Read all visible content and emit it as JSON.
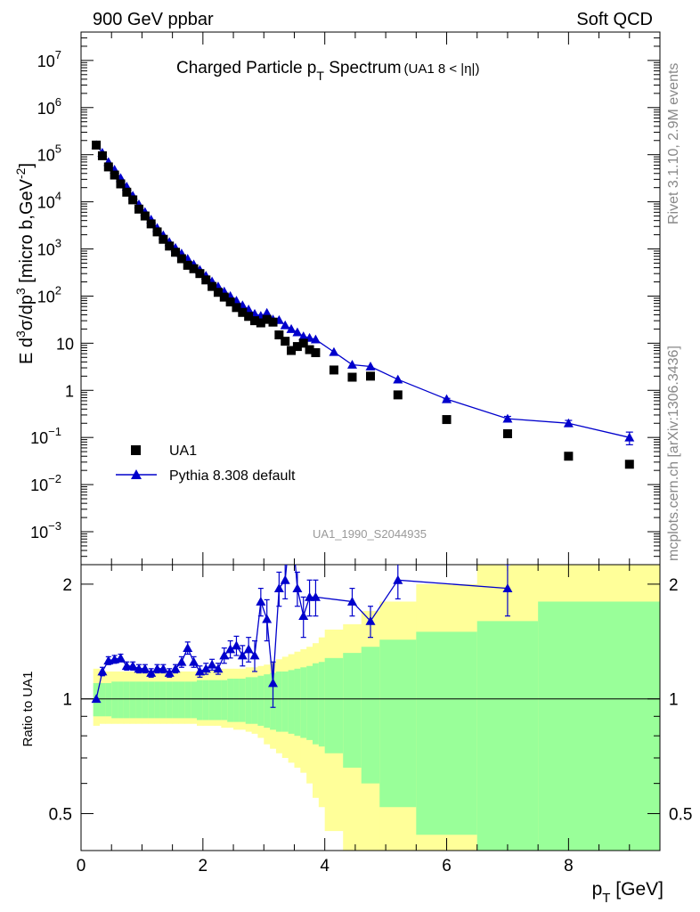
{
  "header": {
    "left": "900 GeV ppbar",
    "right": "Soft QCD",
    "side_top": "Rivet 3.1.10,  2.9M events",
    "side_bottom": "mcplots.cern.ch [arXiv:1306.3436]"
  },
  "colors": {
    "data": "#000000",
    "mc": "#0000cc",
    "band_inner": "#99ff99",
    "band_outer": "#ffff99"
  },
  "chart_data": [
    {
      "type": "scatter",
      "panel": "main",
      "title_main": "Charged Particle p",
      "title_sub": "T",
      "title_rest": " Spectrum",
      "title_extra": "(UA1   8 < |η|)",
      "ylabel": "E d³σ/dp³ [micro b,GeV⁻²]",
      "ylabel_parts": [
        "E d",
        "3",
        "σ/dp",
        "3",
        " [micro b,GeV",
        "-2",
        "]"
      ],
      "analysis_id": "UA1_1990_S2044935",
      "yscale": "log",
      "xlim": [
        0,
        9.5
      ],
      "ylim": [
        0.0002,
        40000000
      ],
      "yticks": [
        {
          "value": 10000000,
          "base": "10",
          "exp": "7"
        },
        {
          "value": 1000000,
          "base": "10",
          "exp": "6"
        },
        {
          "value": 100000,
          "base": "10",
          "exp": "5"
        },
        {
          "value": 10000,
          "base": "10",
          "exp": "4"
        },
        {
          "value": 1000,
          "base": "10",
          "exp": "3"
        },
        {
          "value": 100,
          "base": "10",
          "exp": "2"
        },
        {
          "value": 10,
          "base": "10",
          "exp": ""
        },
        {
          "value": 1,
          "base": "1",
          "exp": ""
        },
        {
          "value": 0.1,
          "base": "10",
          "exp": "−1"
        },
        {
          "value": 0.01,
          "base": "10",
          "exp": "−2"
        },
        {
          "value": 0.001,
          "base": "10",
          "exp": "−3"
        }
      ],
      "legend": [
        {
          "name": "UA1",
          "marker": "square"
        },
        {
          "name": "Pythia 8.308 default",
          "marker": "triangle-line"
        }
      ],
      "legend_position": "bottom-left",
      "series": [
        {
          "name": "UA1",
          "x": [
            0.25,
            0.35,
            0.45,
            0.55,
            0.65,
            0.75,
            0.85,
            0.95,
            1.05,
            1.15,
            1.25,
            1.35,
            1.45,
            1.55,
            1.65,
            1.75,
            1.85,
            1.95,
            2.05,
            2.15,
            2.25,
            2.35,
            2.45,
            2.55,
            2.65,
            2.75,
            2.85,
            2.95,
            3.05,
            3.15,
            3.25,
            3.35,
            3.45,
            3.55,
            3.65,
            3.75,
            3.85,
            4.15,
            4.45,
            4.75,
            5.2,
            6.0,
            7.0,
            8.0,
            9.0
          ],
          "y": [
            160000,
            95000,
            55000,
            37000,
            24000,
            16000,
            11000,
            7000,
            5000,
            3400,
            2300,
            1600,
            1150,
            850,
            620,
            450,
            380,
            300,
            220,
            160,
            120,
            95,
            75,
            57,
            45,
            37,
            30,
            27,
            32,
            28,
            15,
            11,
            7,
            8.5,
            10,
            7.3,
            6.3,
            2.7,
            1.9,
            2.0,
            0.8,
            0.24,
            0.12,
            0.04,
            0.027
          ]
        },
        {
          "name": "Pythia 8.308 default",
          "x": [
            0.25,
            0.35,
            0.45,
            0.55,
            0.65,
            0.75,
            0.85,
            0.95,
            1.05,
            1.15,
            1.25,
            1.35,
            1.45,
            1.55,
            1.65,
            1.75,
            1.85,
            1.95,
            2.05,
            2.15,
            2.25,
            2.35,
            2.45,
            2.55,
            2.65,
            2.75,
            2.85,
            2.95,
            3.05,
            3.15,
            3.25,
            3.35,
            3.45,
            3.55,
            3.65,
            3.75,
            3.85,
            4.15,
            4.45,
            4.75,
            5.2,
            6.0,
            7.0,
            8.0,
            9.0
          ],
          "y": [
            160000,
            110000,
            70000,
            48000,
            32000,
            21000,
            13500,
            8800,
            6100,
            4200,
            2800,
            1950,
            1400,
            1050,
            800,
            620,
            470,
            360,
            270,
            205,
            160,
            125,
            100,
            80,
            64,
            52,
            42,
            38,
            44,
            32,
            31,
            24,
            20,
            17,
            14,
            13,
            12,
            6.5,
            3.5,
            3.2,
            1.7,
            0.65,
            0.25,
            0.2,
            0.1
          ],
          "yerr_rel": [
            0,
            0,
            0,
            0,
            0,
            0,
            0,
            0,
            0,
            0,
            0,
            0,
            0,
            0,
            0,
            0,
            0,
            0,
            0,
            0,
            0,
            0,
            0,
            0,
            0,
            0,
            0,
            0,
            0,
            0,
            0,
            0,
            0,
            0,
            0,
            0,
            0,
            0,
            0,
            0,
            0,
            0.04,
            0.12,
            0.15,
            0.3
          ]
        }
      ]
    },
    {
      "type": "line",
      "panel": "ratio",
      "ylabel": "Ratio to UA1",
      "xlabel_main": "p",
      "xlabel_sub": "T",
      "xlabel_rest": " [GeV]",
      "xlim": [
        0,
        9.5
      ],
      "ylim": [
        0.4,
        2.25
      ],
      "yscale": "log",
      "xticks": [
        0,
        2,
        4,
        6,
        8
      ],
      "yticks": [
        0.5,
        1,
        2
      ],
      "ytick_labels": [
        "0.5",
        "1",
        "2"
      ],
      "band_edges": [
        0.2,
        0.3,
        0.4,
        0.5,
        0.6,
        0.7,
        0.8,
        0.9,
        1.0,
        1.1,
        1.2,
        1.3,
        1.4,
        1.5,
        1.6,
        1.7,
        1.8,
        1.9,
        2.0,
        2.1,
        2.2,
        2.3,
        2.4,
        2.5,
        2.6,
        2.7,
        2.8,
        2.9,
        3.0,
        3.1,
        3.2,
        3.3,
        3.4,
        3.5,
        3.6,
        3.7,
        3.8,
        3.9,
        4.0,
        4.3,
        4.6,
        4.9,
        5.5,
        6.5,
        7.5,
        9.5
      ],
      "band_inner_up": [
        1.1,
        1.1,
        1.1,
        1.11,
        1.11,
        1.11,
        1.11,
        1.11,
        1.11,
        1.11,
        1.11,
        1.11,
        1.11,
        1.11,
        1.11,
        1.11,
        1.11,
        1.12,
        1.12,
        1.12,
        1.12,
        1.12,
        1.13,
        1.13,
        1.13,
        1.14,
        1.14,
        1.15,
        1.16,
        1.17,
        1.18,
        1.18,
        1.19,
        1.2,
        1.21,
        1.22,
        1.24,
        1.25,
        1.28,
        1.32,
        1.37,
        1.43,
        1.5,
        1.6,
        1.8
      ],
      "band_inner_lo": [
        0.9,
        0.9,
        0.9,
        0.89,
        0.89,
        0.89,
        0.89,
        0.89,
        0.89,
        0.89,
        0.89,
        0.89,
        0.89,
        0.89,
        0.89,
        0.89,
        0.89,
        0.88,
        0.88,
        0.88,
        0.88,
        0.88,
        0.87,
        0.87,
        0.87,
        0.86,
        0.86,
        0.85,
        0.84,
        0.83,
        0.82,
        0.82,
        0.81,
        0.8,
        0.79,
        0.78,
        0.76,
        0.75,
        0.72,
        0.66,
        0.6,
        0.52,
        0.44,
        0.36,
        0.3
      ],
      "band_outer_up": [
        1.2,
        1.18,
        1.18,
        1.18,
        1.18,
        1.18,
        1.18,
        1.18,
        1.18,
        1.18,
        1.18,
        1.18,
        1.18,
        1.18,
        1.18,
        1.18,
        1.18,
        1.19,
        1.19,
        1.19,
        1.19,
        1.2,
        1.2,
        1.2,
        1.2,
        1.21,
        1.21,
        1.22,
        1.23,
        1.25,
        1.27,
        1.29,
        1.31,
        1.33,
        1.35,
        1.37,
        1.4,
        1.45,
        1.52,
        1.57,
        1.7,
        1.8,
        2.0,
        2.3,
        2.5
      ],
      "band_outer_lo": [
        0.85,
        0.86,
        0.86,
        0.86,
        0.86,
        0.86,
        0.86,
        0.86,
        0.86,
        0.86,
        0.86,
        0.86,
        0.86,
        0.86,
        0.86,
        0.86,
        0.86,
        0.85,
        0.85,
        0.85,
        0.85,
        0.84,
        0.84,
        0.83,
        0.83,
        0.82,
        0.81,
        0.79,
        0.76,
        0.74,
        0.72,
        0.7,
        0.68,
        0.66,
        0.64,
        0.6,
        0.55,
        0.52,
        0.45,
        0.4,
        0.35,
        0.3,
        0.25,
        0.2,
        0.2
      ],
      "series": [
        {
          "name": "Pythia 8.308 default",
          "x": [
            0.25,
            0.35,
            0.45,
            0.55,
            0.65,
            0.75,
            0.85,
            0.95,
            1.05,
            1.15,
            1.25,
            1.35,
            1.45,
            1.55,
            1.65,
            1.75,
            1.85,
            1.95,
            2.05,
            2.15,
            2.25,
            2.35,
            2.45,
            2.55,
            2.65,
            2.75,
            2.85,
            2.95,
            3.05,
            3.15,
            3.25,
            3.35,
            3.45,
            3.55,
            3.65,
            3.75,
            3.85,
            4.45,
            4.75,
            5.2,
            7.0
          ],
          "y": [
            1.0,
            1.18,
            1.26,
            1.27,
            1.28,
            1.22,
            1.22,
            1.2,
            1.2,
            1.17,
            1.2,
            1.2,
            1.17,
            1.2,
            1.25,
            1.36,
            1.25,
            1.18,
            1.2,
            1.23,
            1.2,
            1.3,
            1.35,
            1.38,
            1.3,
            1.35,
            1.3,
            1.8,
            1.62,
            1.1,
            1.95,
            2.05,
            3.0,
            1.95,
            1.65,
            1.85,
            1.85,
            1.8,
            1.6,
            2.05,
            1.95
          ],
          "yerr": [
            0,
            0.03,
            0.03,
            0.03,
            0.03,
            0.03,
            0.03,
            0.03,
            0.03,
            0.03,
            0.03,
            0.03,
            0.03,
            0.03,
            0.04,
            0.05,
            0.04,
            0.04,
            0.04,
            0.04,
            0.04,
            0.06,
            0.07,
            0.08,
            0.08,
            0.1,
            0.12,
            0.15,
            0.2,
            0.15,
            0.2,
            0.22,
            0.3,
            0.2,
            0.2,
            0.2,
            0.2,
            0.15,
            0.15,
            0.22,
            0.3
          ]
        }
      ]
    }
  ]
}
